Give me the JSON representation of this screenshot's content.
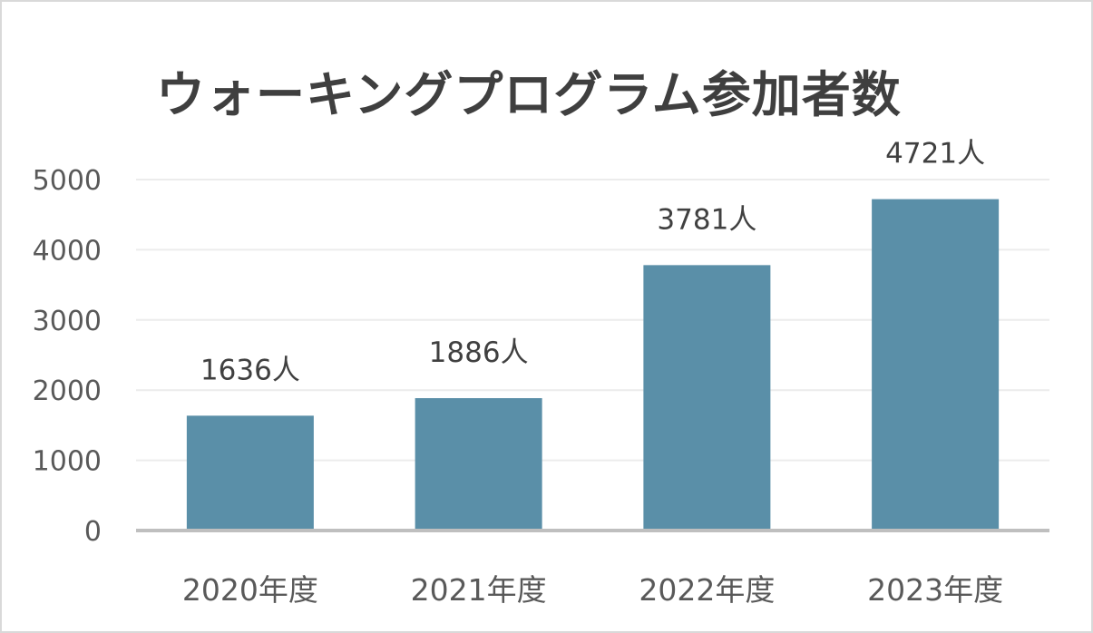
{
  "chart_data": {
    "type": "bar",
    "title": "ウォーキングプログラム参加者数",
    "categories": [
      "2020年度",
      "2021年度",
      "2022年度",
      "2023年度"
    ],
    "values": [
      1636,
      1886,
      3781,
      4721
    ],
    "data_labels": [
      "1636人",
      "1886人",
      "3781人",
      "4721人"
    ],
    "y_ticks": [
      "0",
      "1000",
      "2000",
      "3000",
      "4000",
      "5000"
    ],
    "ylim": [
      0,
      5000
    ],
    "grid": true,
    "legend": "none",
    "colors": {
      "bar": "#5a8fa8",
      "grid": "#ececec",
      "baseline": "#bfbfbf",
      "tick_text": "#595959",
      "label_text": "#404040"
    }
  }
}
